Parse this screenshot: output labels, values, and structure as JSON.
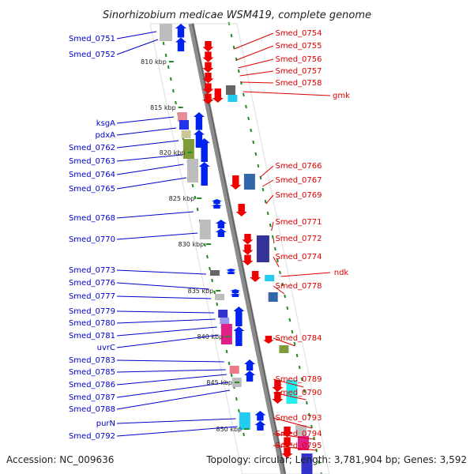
{
  "title": "Sinorhizobium medicae WSM419, complete genome",
  "accession": "Accession: NC_009636",
  "topology": "Topology: circular; Length: 3,781,904 bp; Genes: 3,592",
  "colors": {
    "forward_label": "#0000cc",
    "reverse_label": "#dd0000",
    "backbone": "#8c8c8c",
    "gc_ticks": "#228b22",
    "forward_feature": "#0022ee",
    "reverse_feature": "#ee0000"
  },
  "scale_labels": [
    "810 kbp",
    "815 kbp",
    "820 kbp",
    "825 kbp",
    "830 kbp",
    "835 kbp",
    "840 kbp",
    "845 kbp",
    "850 kbp"
  ],
  "forward_genes": [
    "Smed_0751",
    "Smed_0752",
    "ksgA",
    "pdxA",
    "Smed_0762",
    "Smed_0763",
    "Smed_0764",
    "Smed_0765",
    "Smed_0768",
    "Smed_0770",
    "Smed_0773",
    "Smed_0776",
    "Smed_0777",
    "Smed_0779",
    "Smed_0780",
    "Smed_0781",
    "uvrC",
    "Smed_0783",
    "Smed_0785",
    "Smed_0786",
    "Smed_0787",
    "Smed_0788",
    "purN",
    "Smed_0792"
  ],
  "reverse_genes": [
    "Smed_0754",
    "Smed_0755",
    "Smed_0756",
    "Smed_0757",
    "Smed_0758",
    "gmk",
    "Smed_0766",
    "Smed_0767",
    "Smed_0769",
    "Smed_0771",
    "Smed_0772",
    "Smed_0774",
    "ndk",
    "Smed_0778",
    "Smed_0784",
    "Smed_0789",
    "Smed_0790",
    "Smed_0793",
    "Smed_0794",
    "Smed_0795"
  ]
}
